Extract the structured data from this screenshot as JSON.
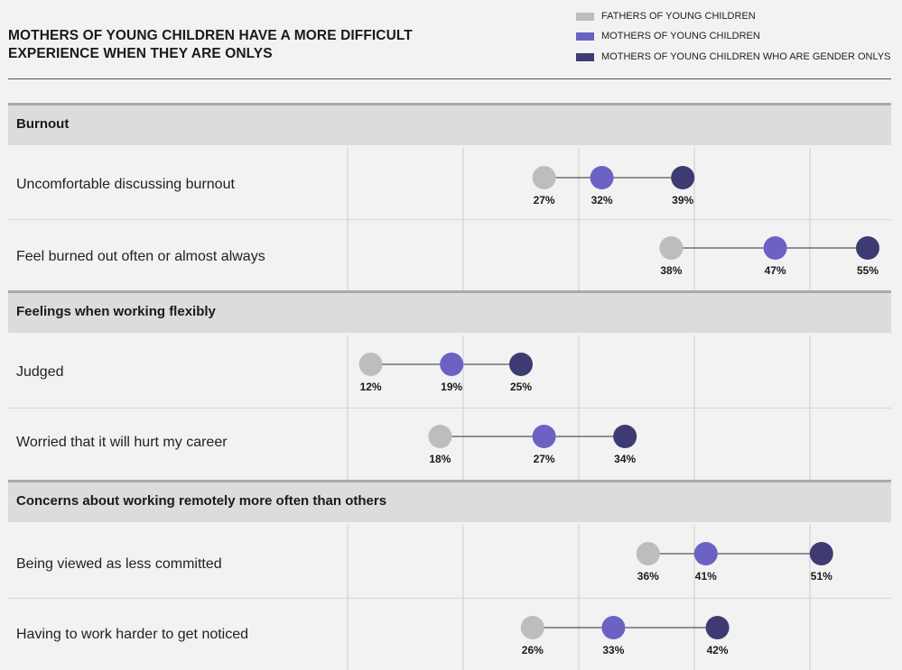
{
  "chart_data": {
    "type": "dot",
    "title": "MOTHERS OF YOUNG CHILDREN HAVE A MORE DIFFICULT EXPERIENCE WHEN THEY ARE ONLYS",
    "series": [
      {
        "name": "FATHERS OF YOUNG CHILDREN",
        "color": "#bdbdbd"
      },
      {
        "name": "MOTHERS OF YOUNG CHILDREN",
        "color": "#6b62c4"
      },
      {
        "name": "MOTHERS OF YOUNG CHILDREN WHO ARE GENDER ONLYS",
        "color": "#3e3b73"
      }
    ],
    "xlim": [
      10,
      60
    ],
    "grid": true,
    "legend_position": "top-right",
    "sections": [
      {
        "label": "Burnout",
        "rows": [
          {
            "label": "Uncomfortable discussing burnout",
            "values": [
              27,
              32,
              39
            ],
            "value_labels": [
              "27%",
              "32%",
              "39%"
            ]
          },
          {
            "label": "Feel burned out often or almost always",
            "values": [
              38,
              47,
              55
            ],
            "value_labels": [
              "38%",
              "47%",
              "55%"
            ]
          }
        ]
      },
      {
        "label": "Feelings when working flexibly",
        "rows": [
          {
            "label": "Judged",
            "values": [
              12,
              19,
              25
            ],
            "value_labels": [
              "12%",
              "19%",
              "25%"
            ]
          },
          {
            "label": "Worried that it will hurt my career",
            "values": [
              18,
              27,
              34
            ],
            "value_labels": [
              "18%",
              "27%",
              "34%"
            ]
          }
        ]
      },
      {
        "label": "Concerns about working remotely more often than others",
        "rows": [
          {
            "label": "Being viewed as less committed",
            "values": [
              36,
              41,
              51
            ],
            "value_labels": [
              "36%",
              "41%",
              "51%"
            ]
          },
          {
            "label": "Having to work harder to get noticed",
            "values": [
              26,
              33,
              42
            ],
            "value_labels": [
              "26%",
              "33%",
              "42%"
            ]
          }
        ]
      }
    ]
  }
}
